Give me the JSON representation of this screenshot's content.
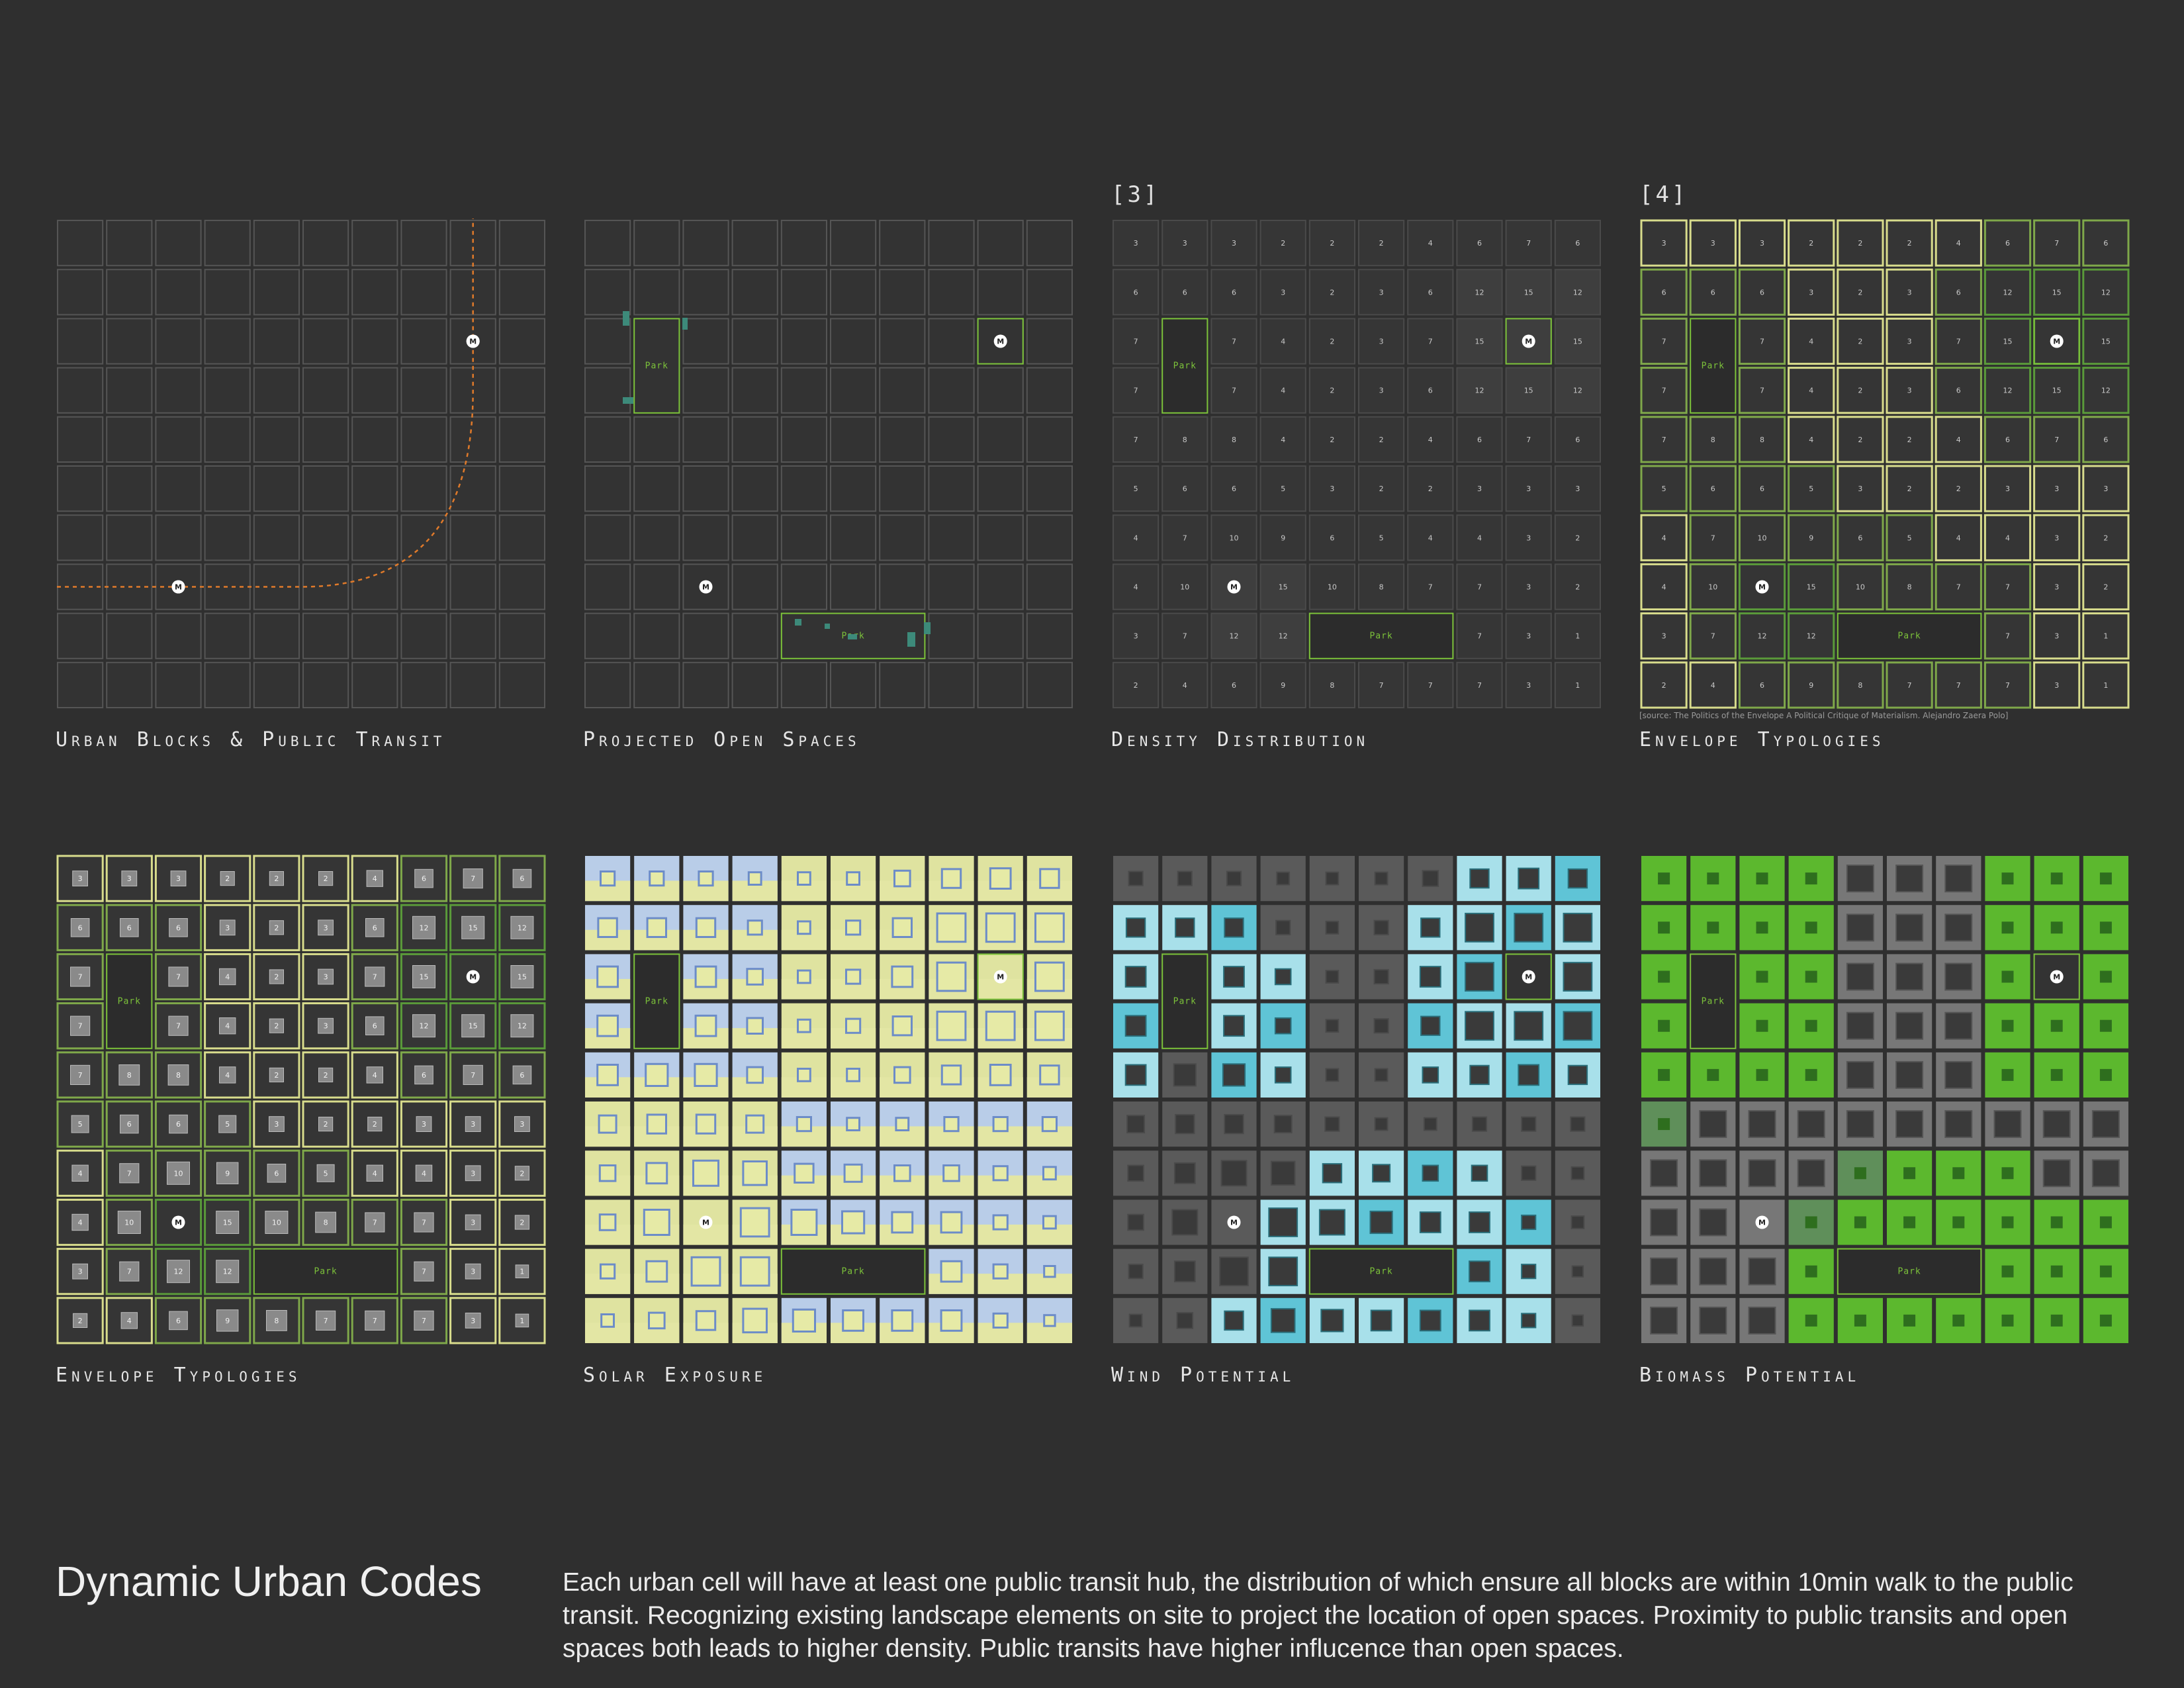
{
  "panels": [
    {
      "num": "",
      "title": "Urban Blocks & Public Transit",
      "style": "blocks"
    },
    {
      "num": "",
      "title": "Projected Open Spaces",
      "style": "open"
    },
    {
      "num": "[3]",
      "title": "Density Distribution",
      "style": "density"
    },
    {
      "num": "[4]",
      "title": "Envelope Typologies",
      "style": "envelope",
      "source": "[source: The Politics of the Envelope A Political Critique of Materialism. Alejandro Zaera Polo]"
    },
    {
      "num": "",
      "title": "Envelope Typologies",
      "style": "envelope3d"
    },
    {
      "num": "",
      "title": "Solar Exposure",
      "style": "solar"
    },
    {
      "num": "",
      "title": "Wind Potential",
      "style": "wind"
    },
    {
      "num": "",
      "title": "Biomass Potential",
      "style": "biomass"
    }
  ],
  "park_label": "Park",
  "metro_label": "M",
  "density_grid": [
    [
      "3",
      "3",
      "3",
      "2",
      "2",
      "2",
      "4",
      "6",
      "7",
      "6"
    ],
    [
      "6",
      "6",
      "6",
      "3",
      "2",
      "3",
      "6",
      "12",
      "15",
      "12"
    ],
    [
      "7",
      "P",
      "7",
      "4",
      "2",
      "3",
      "7",
      "15",
      "M",
      "15"
    ],
    [
      "7",
      "P",
      "7",
      "4",
      "2",
      "3",
      "6",
      "12",
      "15",
      "12"
    ],
    [
      "7",
      "8",
      "8",
      "4",
      "2",
      "2",
      "4",
      "6",
      "7",
      "6"
    ],
    [
      "5",
      "6",
      "6",
      "5",
      "3",
      "2",
      "2",
      "3",
      "3",
      "3"
    ],
    [
      "4",
      "7",
      "10",
      "9",
      "6",
      "5",
      "4",
      "4",
      "3",
      "2"
    ],
    [
      "4",
      "10",
      "M",
      "15",
      "10",
      "8",
      "7",
      "7",
      "3",
      "2"
    ],
    [
      "3",
      "7",
      "12",
      "12",
      "P2",
      "P2",
      "P2",
      "7",
      "3",
      "1"
    ],
    [
      "2",
      "4",
      "6",
      "9",
      "8",
      "7",
      "7",
      "7",
      "3",
      "1"
    ]
  ],
  "footer": {
    "title": "Dynamic Urban Codes",
    "text": "Each urban cell will have at least one public transit hub, the distribution of which ensure all blocks are within 10min walk to the public transit. Recognizing existing landscape elements on site to project the location of open spaces. Proximity to public transits and open spaces both leads to higher density. Public transits have higher influcence than open spaces."
  },
  "colors": {
    "background": "#2f2f2f",
    "cell_outline": "#555555",
    "park_green": "#7cc23a",
    "transit_orange": "#e07a2a",
    "envelope_yellow": "#d8dc8c",
    "envelope_green": "#5a9a3a",
    "wind_teal": "#5fc4d6",
    "wind_light": "#a8e0ea",
    "biomass_green": "#5cb82e",
    "biomass_dark": "#3e9e2a"
  }
}
